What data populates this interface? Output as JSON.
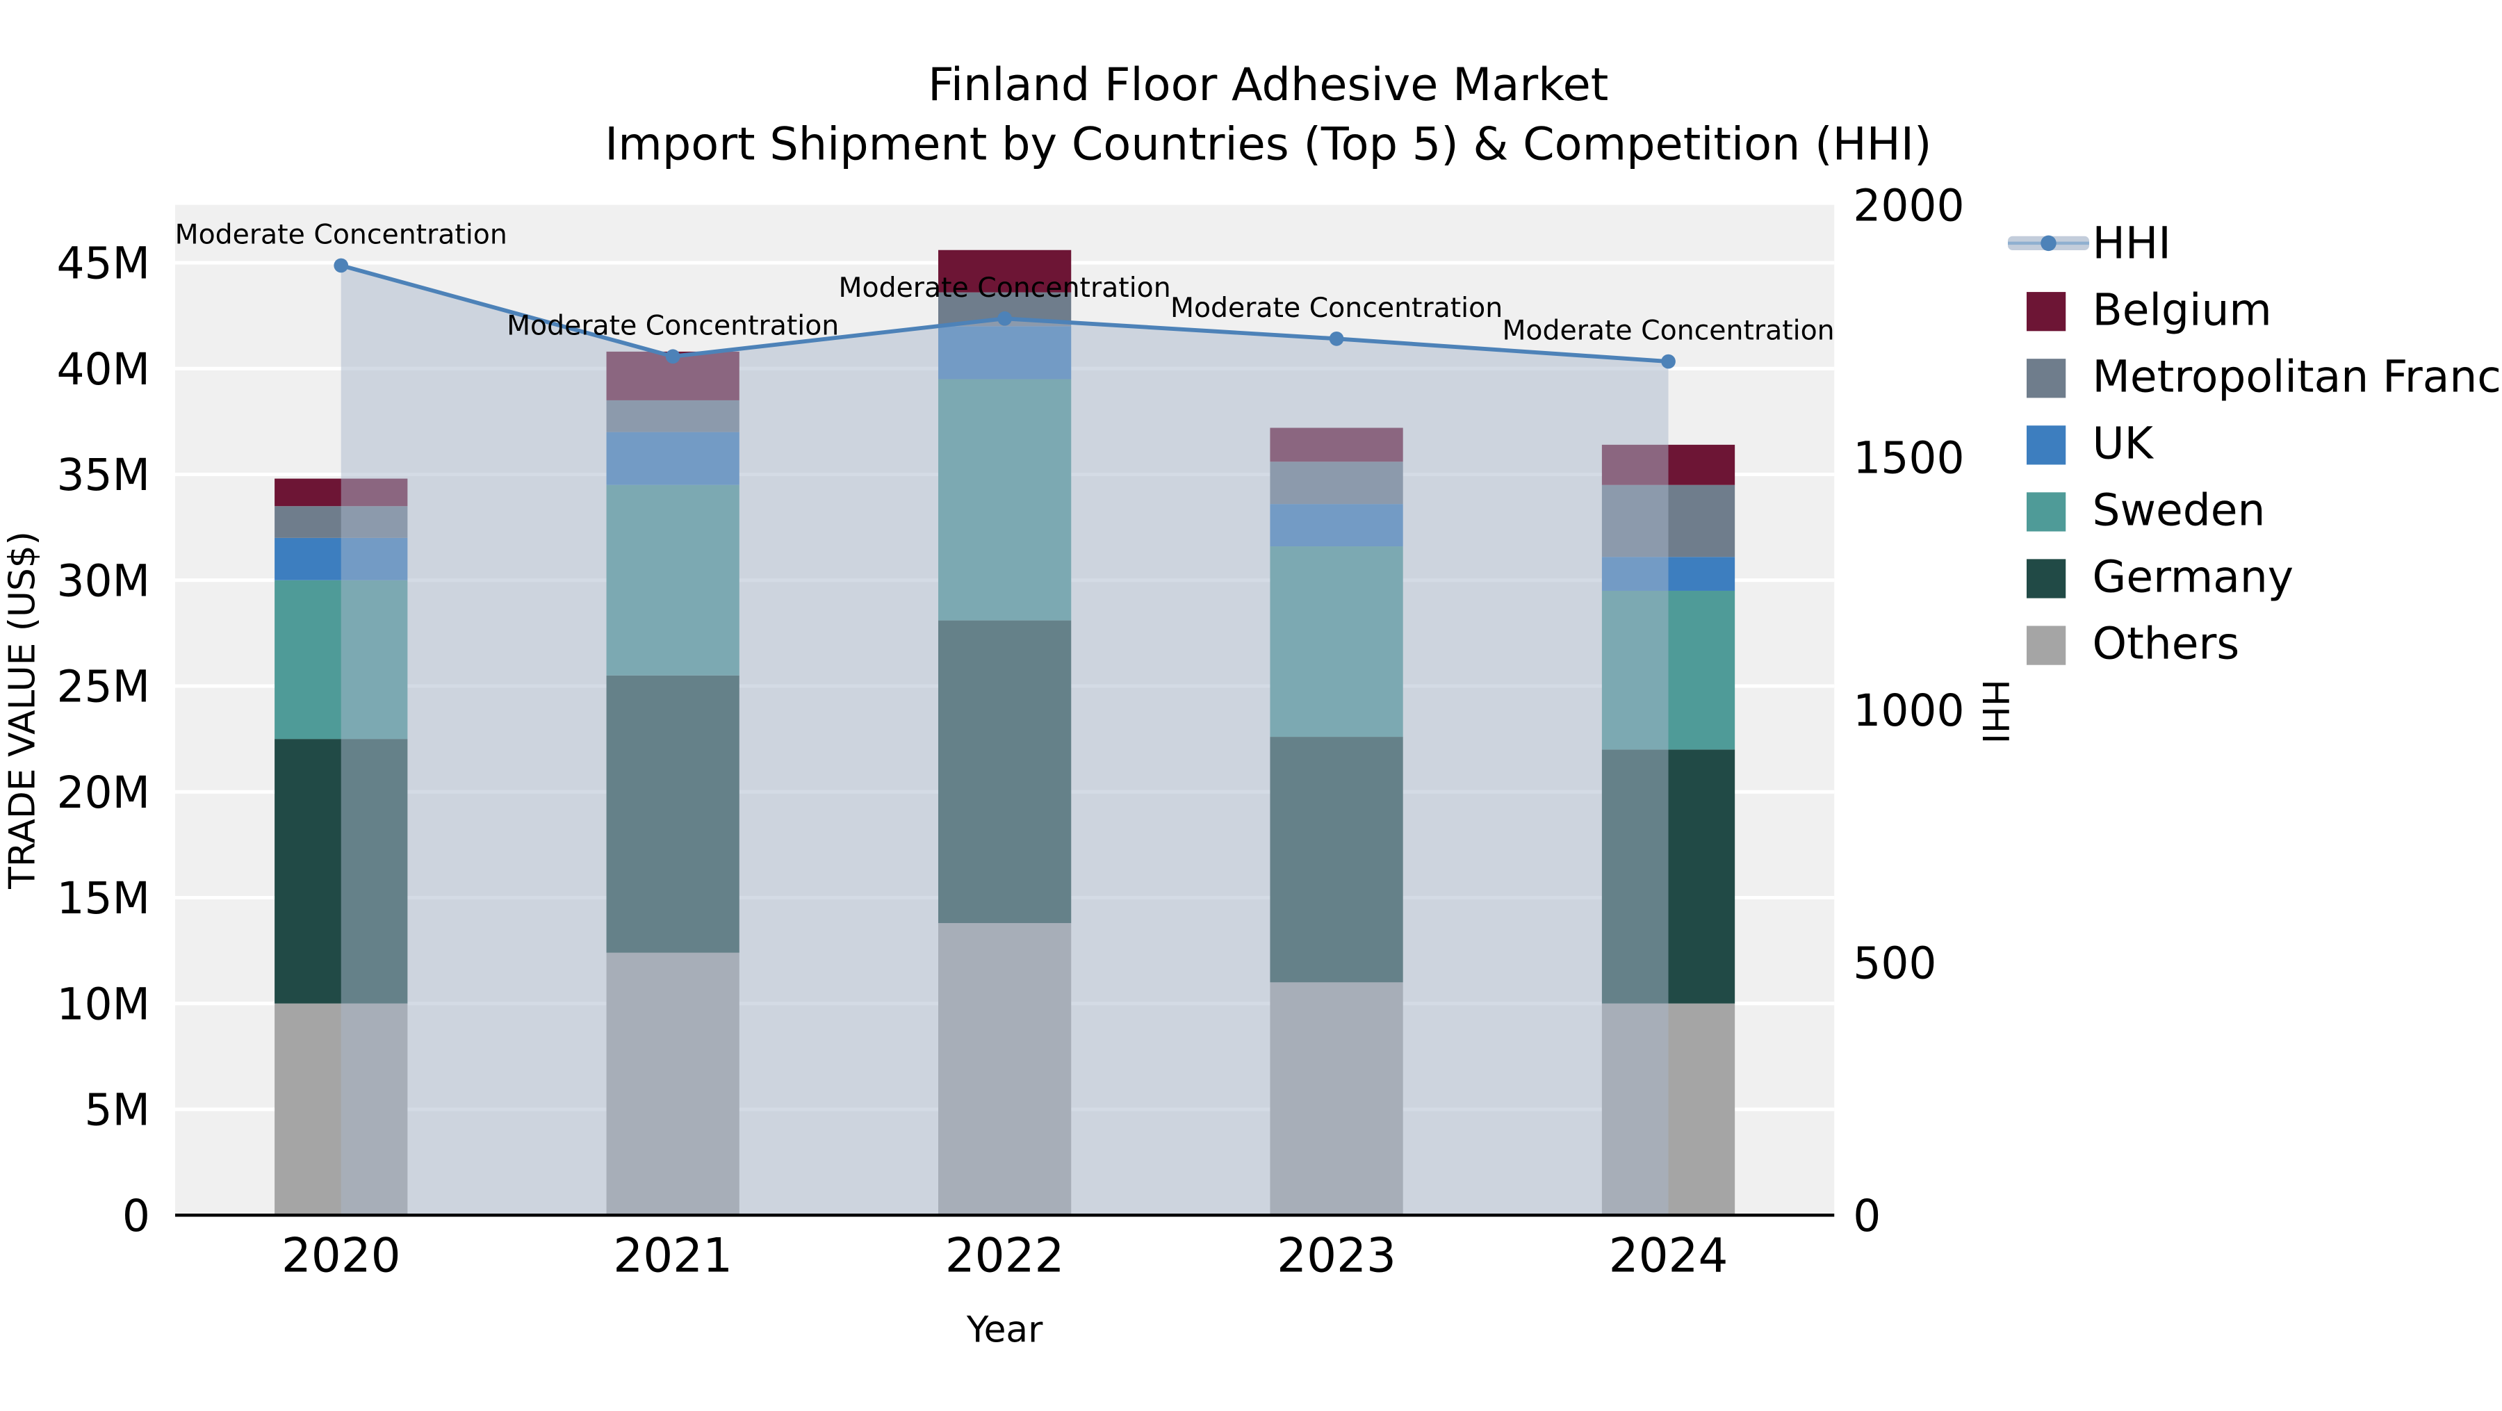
{
  "chart_data": {
    "type": "combo-stacked-bar-line",
    "title_lines": [
      "Finland Floor Adhesive Market",
      "Import Shipment by Countries (Top 5) & Competition (HHI)"
    ],
    "xlabel": "Year",
    "ylabel_left": "TRADE VALUE (US$)",
    "ylabel_right": "HHI",
    "categories": [
      "2020",
      "2021",
      "2022",
      "2023",
      "2024"
    ],
    "bar_unit": "M US$",
    "stack_order_bottom_to_top": [
      "Others",
      "Germany",
      "Sweden",
      "UK",
      "Metropolitan France",
      "Belgium"
    ],
    "series": [
      {
        "name": "Others",
        "color": "#a5a5a5",
        "values": [
          10.0,
          12.4,
          13.8,
          11.0,
          10.0
        ]
      },
      {
        "name": "Germany",
        "color": "#214a46",
        "values": [
          12.5,
          13.1,
          14.3,
          11.6,
          12.0
        ]
      },
      {
        "name": "Sweden",
        "color": "#4f9b98",
        "values": [
          7.5,
          9.0,
          11.4,
          9.0,
          7.5
        ]
      },
      {
        "name": "UK",
        "color": "#3d7ebf",
        "values": [
          2.0,
          2.5,
          2.5,
          2.0,
          1.6
        ]
      },
      {
        "name": "Metropolitan France",
        "color": "#6f7d8c",
        "values": [
          1.5,
          1.5,
          1.6,
          2.0,
          3.4
        ]
      },
      {
        "name": "Belgium",
        "color": "#6d1535",
        "values": [
          1.3,
          2.3,
          2.0,
          1.6,
          1.9
        ]
      }
    ],
    "bar_totals": [
      34.8,
      40.8,
      45.6,
      37.2,
      36.4
    ],
    "line_series": {
      "name": "HHI",
      "color": "#4d82b8",
      "area_fill": "#aab8cc",
      "area_opacity": 0.5,
      "values": [
        1880,
        1700,
        1775,
        1735,
        1690
      ]
    },
    "annotations": [
      "Moderate Concentration",
      "Moderate Concentration",
      "Moderate Concentration",
      "Moderate Concentration",
      "Moderate Concentration"
    ],
    "y_left": {
      "min": 0,
      "max": 45,
      "tick_step": 5,
      "tick_labels": [
        "0",
        "5M",
        "10M",
        "15M",
        "20M",
        "25M",
        "30M",
        "35M",
        "40M",
        "45M"
      ]
    },
    "y_right": {
      "min": 0,
      "max": 2000,
      "ticks": [
        0,
        500,
        1000,
        1500,
        2000
      ],
      "tick_labels": [
        "0",
        "500",
        "1000",
        "1500",
        "2000"
      ]
    },
    "legend": [
      {
        "label": "HHI",
        "type": "line"
      },
      {
        "label": "Belgium",
        "type": "swatch",
        "color": "#6d1535"
      },
      {
        "label": "Metropolitan France",
        "type": "swatch",
        "color": "#6f7d8c"
      },
      {
        "label": "UK",
        "type": "swatch",
        "color": "#3d7ebf"
      },
      {
        "label": "Sweden",
        "type": "swatch",
        "color": "#4f9b98"
      },
      {
        "label": "Germany",
        "type": "swatch",
        "color": "#214a46"
      },
      {
        "label": "Others",
        "type": "swatch",
        "color": "#a5a5a5"
      }
    ],
    "plot_bg": "#f0f0f0",
    "grid_color": "#ffffff",
    "grid_on": true,
    "legend_position": "right"
  }
}
